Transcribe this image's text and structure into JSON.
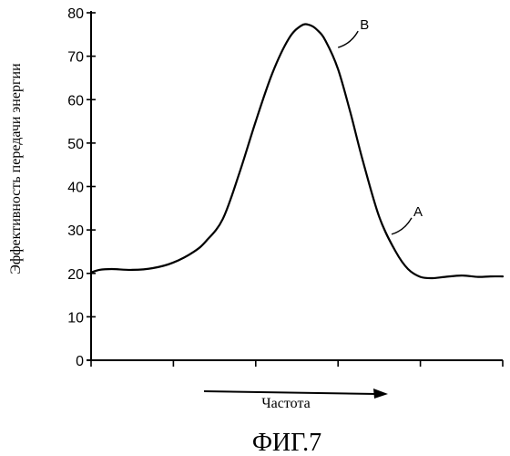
{
  "chart_data": {
    "type": "line",
    "title": "",
    "caption": "ФИГ.7",
    "xlabel": "Частота",
    "ylabel": "Эффективность передачи энергии",
    "ylim": [
      0,
      80
    ],
    "yticks": [
      0,
      10,
      20,
      30,
      40,
      50,
      60,
      70,
      80
    ],
    "xticks_count": 6,
    "xlim": [
      0,
      1
    ],
    "grid": false,
    "series": [
      {
        "x": [
          0.0,
          0.02,
          0.05,
          0.1,
          0.15,
          0.2,
          0.25,
          0.28,
          0.32,
          0.36,
          0.4,
          0.44,
          0.48,
          0.51,
          0.53,
          0.55,
          0.57,
          0.6,
          0.63,
          0.66,
          0.7,
          0.74,
          0.77,
          0.8,
          0.83,
          0.86,
          0.9,
          0.94,
          0.97,
          1.0
        ],
        "values": [
          20.2,
          20.8,
          21.0,
          20.8,
          21.2,
          22.5,
          25.0,
          27.5,
          32.5,
          43.0,
          55.0,
          66.0,
          74.0,
          77.0,
          77.2,
          76.0,
          73.5,
          67.0,
          57.0,
          46.0,
          33.0,
          25.0,
          21.0,
          19.2,
          18.9,
          19.2,
          19.5,
          19.2,
          19.3,
          19.3
        ]
      }
    ],
    "annotations": [
      {
        "label": "B",
        "x": 0.6,
        "y": 72
      },
      {
        "label": "A",
        "x": 0.73,
        "y": 29
      }
    ]
  }
}
